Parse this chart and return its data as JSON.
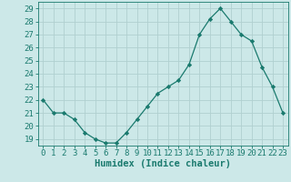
{
  "x": [
    0,
    1,
    2,
    3,
    4,
    5,
    6,
    7,
    8,
    9,
    10,
    11,
    12,
    13,
    14,
    15,
    16,
    17,
    18,
    19,
    20,
    21,
    22,
    23
  ],
  "y": [
    22,
    21,
    21,
    20.5,
    19.5,
    19,
    18.7,
    18.7,
    19.5,
    20.5,
    21.5,
    22.5,
    23,
    23.5,
    24.7,
    27,
    28.2,
    29,
    28,
    27,
    26.5,
    24.5,
    23,
    21
  ],
  "xlabel": "Humidex (Indice chaleur)",
  "ylim": [
    18.5,
    29.5
  ],
  "xlim": [
    -0.5,
    23.5
  ],
  "yticks": [
    19,
    20,
    21,
    22,
    23,
    24,
    25,
    26,
    27,
    28,
    29
  ],
  "xticks": [
    0,
    1,
    2,
    3,
    4,
    5,
    6,
    7,
    8,
    9,
    10,
    11,
    12,
    13,
    14,
    15,
    16,
    17,
    18,
    19,
    20,
    21,
    22,
    23
  ],
  "line_color": "#1a7a6e",
  "marker": "D",
  "marker_size": 2.2,
  "bg_color": "#cce8e8",
  "grid_color": "#b0d0d0",
  "font_color": "#1a7a6e",
  "xlabel_fontsize": 7.5,
  "tick_fontsize": 6.5
}
